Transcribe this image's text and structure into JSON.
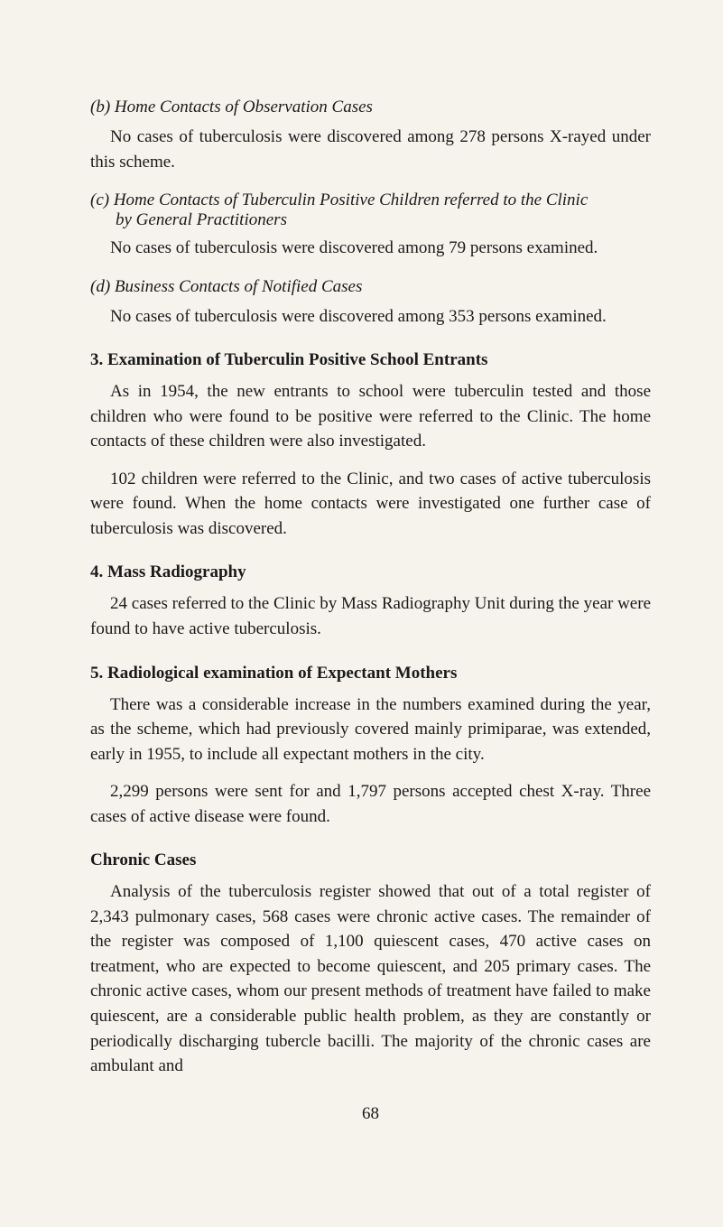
{
  "page": {
    "background_color": "#f5f3ec",
    "text_color": "#1a1a1a",
    "font_family": "Georgia, serif",
    "body_fontsize": 19,
    "heading_fontsize": 19,
    "page_number": "68"
  },
  "sections": {
    "b": {
      "heading": "(b) Home Contacts of Observation Cases",
      "body": "No cases of tuberculosis were discovered among 278 persons X-rayed under this scheme."
    },
    "c": {
      "heading_line1": "(c) Home Contacts of Tuberculin Positive Children referred to the Clinic",
      "heading_line2": "by General Practitioners",
      "body": "No cases of tuberculosis were discovered among 79 persons examined."
    },
    "d": {
      "heading": "(d) Business Contacts of Notified Cases",
      "body": "No cases of tuberculosis were discovered among 353 persons examined."
    },
    "s3": {
      "heading": "3. Examination of Tuberculin Positive School Entrants",
      "para1": "As in 1954, the new entrants to school were tuberculin tested and those children who were found to be positive were referred to the Clinic. The home contacts of these children were also investigated.",
      "para2": "102 children were referred to the Clinic, and two cases of active tuberculosis were found. When the home contacts were investigated one further case of tuberculosis was discovered."
    },
    "s4": {
      "heading": "4. Mass Radiography",
      "body": "24 cases referred to the Clinic by Mass Radiography Unit during the year were found to have active tuberculosis."
    },
    "s5": {
      "heading": "5. Radiological examination of Expectant Mothers",
      "para1": "There was a considerable increase in the numbers examined during the year, as the scheme, which had previously covered mainly primi­parae, was extended, early in 1955, to include all expectant mothers in the city.",
      "para2": "2,299 persons were sent for and 1,797 persons accepted chest X-ray. Three cases of active disease were found."
    },
    "chronic": {
      "heading": "Chronic Cases",
      "body": "Analysis of the tuberculosis register showed that out of a total register of 2,343 pulmonary cases, 568 cases were chronic active cases. The remainder of the register was composed of 1,100 quiescent cases, 470 active cases on treatment, who are expected to become quiescent, and 205 primary cases. The chronic active cases, whom our present methods of treatment have failed to make quiescent, are a considerable public health problem, as they are constantly or periodically discharging tubercle bacilli. The majority of the chronic cases are ambulant and"
    }
  }
}
